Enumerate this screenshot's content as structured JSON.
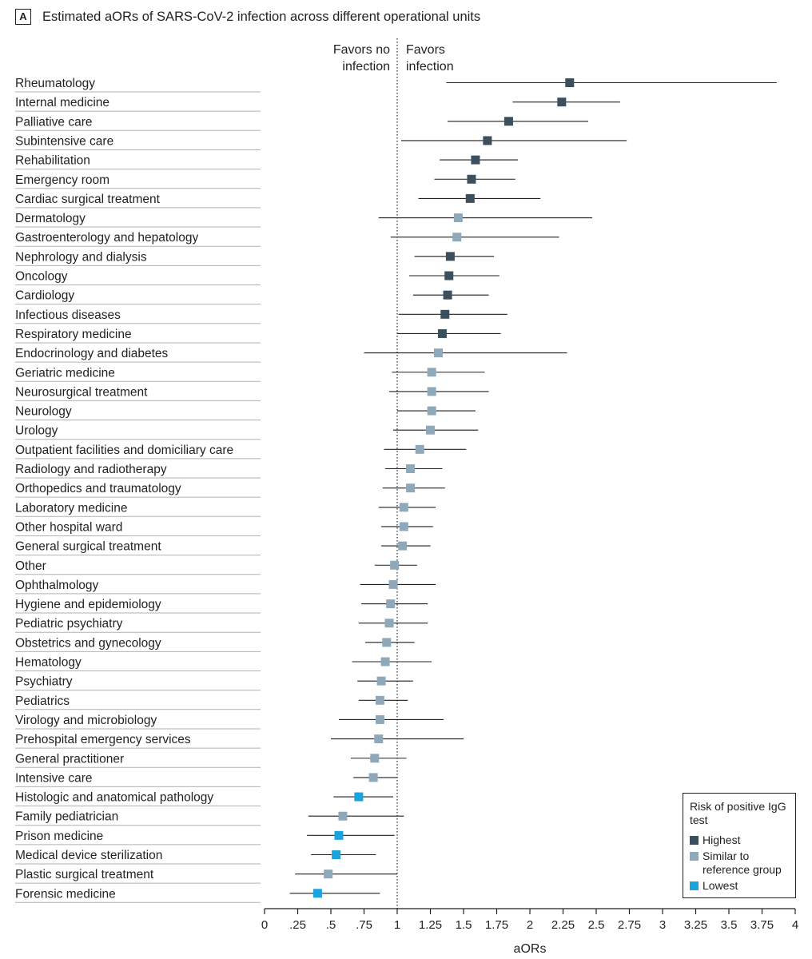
{
  "panel_label": "A",
  "panel_title": "Estimated aORs of SARS-CoV-2 infection across different operational units",
  "annotations": {
    "left": [
      "Favors no",
      "infection"
    ],
    "right": [
      "Favors",
      "infection"
    ]
  },
  "legend": {
    "title": "Risk of positive IgG test",
    "items": [
      {
        "label": "Highest",
        "group": "highest"
      },
      {
        "label": "Similar to reference group",
        "group": "similar"
      },
      {
        "label": "Lowest",
        "group": "lowest"
      }
    ]
  },
  "colors": {
    "highest": "#3b4f5c",
    "similar": "#8fa9ba",
    "lowest": "#1aa3dd",
    "ci_line": "#231f20",
    "separator": "#b4b2ac"
  },
  "chart_data": {
    "type": "forest",
    "xlabel": "aORs",
    "xlim": [
      0,
      4
    ],
    "reference_line": 1,
    "ticks": [
      0,
      0.25,
      0.5,
      0.75,
      1,
      1.25,
      1.5,
      1.75,
      2,
      2.25,
      2.5,
      2.75,
      3,
      3.25,
      3.5,
      3.75,
      4
    ],
    "tick_labels": [
      "0",
      ".25",
      ".5",
      ".75",
      "1",
      "1.25",
      "1.5",
      "1.75",
      "2",
      "2.25",
      "2.5",
      "2.75",
      "3",
      "3.25",
      "3.5",
      "3.75",
      "4"
    ],
    "rows": [
      {
        "label": "Rheumatology",
        "aor": 2.3,
        "lo": 1.37,
        "hi": 3.86,
        "group": "highest"
      },
      {
        "label": "Internal medicine",
        "aor": 2.24,
        "lo": 1.87,
        "hi": 2.68,
        "group": "highest"
      },
      {
        "label": "Palliative care",
        "aor": 1.84,
        "lo": 1.38,
        "hi": 2.44,
        "group": "highest"
      },
      {
        "label": "Subintensive care",
        "aor": 1.68,
        "lo": 1.03,
        "hi": 2.73,
        "group": "highest"
      },
      {
        "label": "Rehabilitation",
        "aor": 1.59,
        "lo": 1.32,
        "hi": 1.91,
        "group": "highest"
      },
      {
        "label": "Emergency room",
        "aor": 1.56,
        "lo": 1.28,
        "hi": 1.89,
        "group": "highest"
      },
      {
        "label": "Cardiac surgical treatment",
        "aor": 1.55,
        "lo": 1.16,
        "hi": 2.08,
        "group": "highest"
      },
      {
        "label": "Dermatology",
        "aor": 1.46,
        "lo": 0.86,
        "hi": 2.47,
        "group": "similar"
      },
      {
        "label": "Gastroenterology and hepatology",
        "aor": 1.45,
        "lo": 0.95,
        "hi": 2.22,
        "group": "similar"
      },
      {
        "label": "Nephrology and dialysis",
        "aor": 1.4,
        "lo": 1.13,
        "hi": 1.73,
        "group": "highest"
      },
      {
        "label": "Oncology",
        "aor": 1.39,
        "lo": 1.09,
        "hi": 1.77,
        "group": "highest"
      },
      {
        "label": "Cardiology",
        "aor": 1.38,
        "lo": 1.12,
        "hi": 1.69,
        "group": "highest"
      },
      {
        "label": "Infectious diseases",
        "aor": 1.36,
        "lo": 1.01,
        "hi": 1.83,
        "group": "highest"
      },
      {
        "label": "Respiratory medicine",
        "aor": 1.34,
        "lo": 1.0,
        "hi": 1.78,
        "group": "highest"
      },
      {
        "label": "Endocrinology and diabetes",
        "aor": 1.31,
        "lo": 0.75,
        "hi": 2.28,
        "group": "similar"
      },
      {
        "label": "Geriatric medicine",
        "aor": 1.26,
        "lo": 0.96,
        "hi": 1.66,
        "group": "similar"
      },
      {
        "label": "Neurosurgical treatment",
        "aor": 1.26,
        "lo": 0.94,
        "hi": 1.69,
        "group": "similar"
      },
      {
        "label": "Neurology",
        "aor": 1.26,
        "lo": 1.0,
        "hi": 1.59,
        "group": "similar"
      },
      {
        "label": "Urology",
        "aor": 1.25,
        "lo": 0.97,
        "hi": 1.61,
        "group": "similar"
      },
      {
        "label": "Outpatient facilities and domiciliary care",
        "aor": 1.17,
        "lo": 0.9,
        "hi": 1.52,
        "group": "similar"
      },
      {
        "label": "Radiology and radiotherapy",
        "aor": 1.1,
        "lo": 0.91,
        "hi": 1.34,
        "group": "similar"
      },
      {
        "label": "Orthopedics and traumatology",
        "aor": 1.1,
        "lo": 0.89,
        "hi": 1.36,
        "group": "similar"
      },
      {
        "label": "Laboratory medicine",
        "aor": 1.05,
        "lo": 0.86,
        "hi": 1.29,
        "group": "similar"
      },
      {
        "label": "Other hospital ward",
        "aor": 1.05,
        "lo": 0.88,
        "hi": 1.27,
        "group": "similar"
      },
      {
        "label": "General surgical treatment",
        "aor": 1.04,
        "lo": 0.88,
        "hi": 1.25,
        "group": "similar"
      },
      {
        "label": "Other",
        "aor": 0.98,
        "lo": 0.83,
        "hi": 1.15,
        "group": "similar"
      },
      {
        "label": "Ophthalmology",
        "aor": 0.97,
        "lo": 0.72,
        "hi": 1.29,
        "group": "similar"
      },
      {
        "label": "Hygiene and epidemiology",
        "aor": 0.95,
        "lo": 0.73,
        "hi": 1.23,
        "group": "similar"
      },
      {
        "label": "Pediatric psychiatry",
        "aor": 0.94,
        "lo": 0.71,
        "hi": 1.23,
        "group": "similar"
      },
      {
        "label": "Obstetrics and gynecology",
        "aor": 0.92,
        "lo": 0.76,
        "hi": 1.13,
        "group": "similar"
      },
      {
        "label": "Hematology",
        "aor": 0.91,
        "lo": 0.66,
        "hi": 1.26,
        "group": "similar"
      },
      {
        "label": "Psychiatry",
        "aor": 0.88,
        "lo": 0.7,
        "hi": 1.12,
        "group": "similar"
      },
      {
        "label": "Pediatrics",
        "aor": 0.87,
        "lo": 0.71,
        "hi": 1.08,
        "group": "similar"
      },
      {
        "label": "Virology and microbiology",
        "aor": 0.87,
        "lo": 0.56,
        "hi": 1.35,
        "group": "similar"
      },
      {
        "label": "Prehospital emergency services",
        "aor": 0.86,
        "lo": 0.5,
        "hi": 1.5,
        "group": "similar"
      },
      {
        "label": "General practitioner",
        "aor": 0.83,
        "lo": 0.65,
        "hi": 1.07,
        "group": "similar"
      },
      {
        "label": "Intensive care",
        "aor": 0.82,
        "lo": 0.67,
        "hi": 1.0,
        "group": "similar"
      },
      {
        "label": "Histologic and anatomical pathology",
        "aor": 0.71,
        "lo": 0.52,
        "hi": 0.97,
        "group": "lowest"
      },
      {
        "label": "Family pediatrician",
        "aor": 0.59,
        "lo": 0.33,
        "hi": 1.05,
        "group": "similar"
      },
      {
        "label": "Prison medicine",
        "aor": 0.56,
        "lo": 0.32,
        "hi": 0.98,
        "group": "lowest"
      },
      {
        "label": "Medical device sterilization",
        "aor": 0.54,
        "lo": 0.35,
        "hi": 0.84,
        "group": "lowest"
      },
      {
        "label": "Plastic surgical treatment",
        "aor": 0.48,
        "lo": 0.23,
        "hi": 1.0,
        "group": "similar"
      },
      {
        "label": "Forensic medicine",
        "aor": 0.4,
        "lo": 0.19,
        "hi": 0.87,
        "group": "lowest"
      }
    ]
  }
}
